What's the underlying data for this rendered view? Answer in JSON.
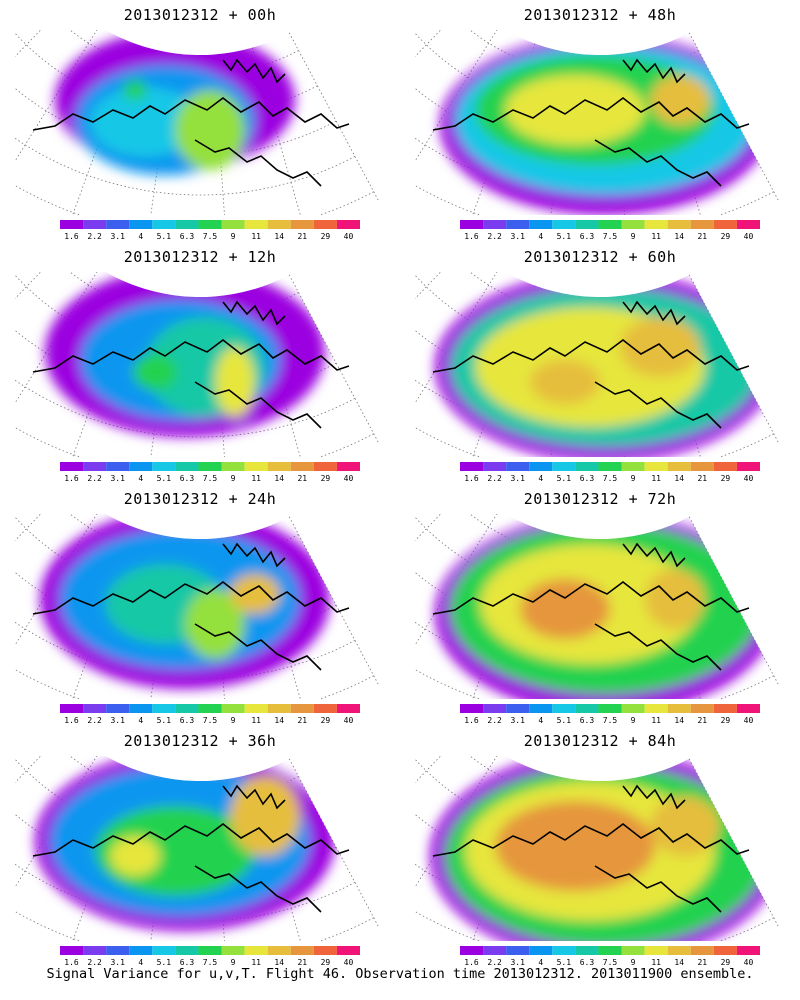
{
  "panels": [
    {
      "title": "2013012312 + 00h",
      "lead_hours": 0
    },
    {
      "title": "2013012312 + 48h",
      "lead_hours": 48
    },
    {
      "title": "2013012312 + 12h",
      "lead_hours": 12
    },
    {
      "title": "2013012312 + 60h",
      "lead_hours": 60
    },
    {
      "title": "2013012312 + 24h",
      "lead_hours": 24
    },
    {
      "title": "2013012312 + 72h",
      "lead_hours": 72
    },
    {
      "title": "2013012312 + 36h",
      "lead_hours": 36
    },
    {
      "title": "2013012312 + 84h",
      "lead_hours": 84
    }
  ],
  "colorbar": {
    "labels": [
      "1.6",
      "2.2",
      "3.1",
      "4",
      "5.1",
      "6.3",
      "7.5",
      "9",
      "11",
      "14",
      "21",
      "29",
      "40"
    ],
    "colors": [
      "#9b00e0",
      "#7b3cf0",
      "#3c5ff0",
      "#0a96f0",
      "#16c8e6",
      "#16c8a6",
      "#22d250",
      "#94e03c",
      "#e6e63c",
      "#e6be3c",
      "#e6963c",
      "#f0643c",
      "#f01478"
    ]
  },
  "footer": "Signal Variance for u,v,T. Flight 46. Observation time 2013012312. 2013011900 ensemble."
}
